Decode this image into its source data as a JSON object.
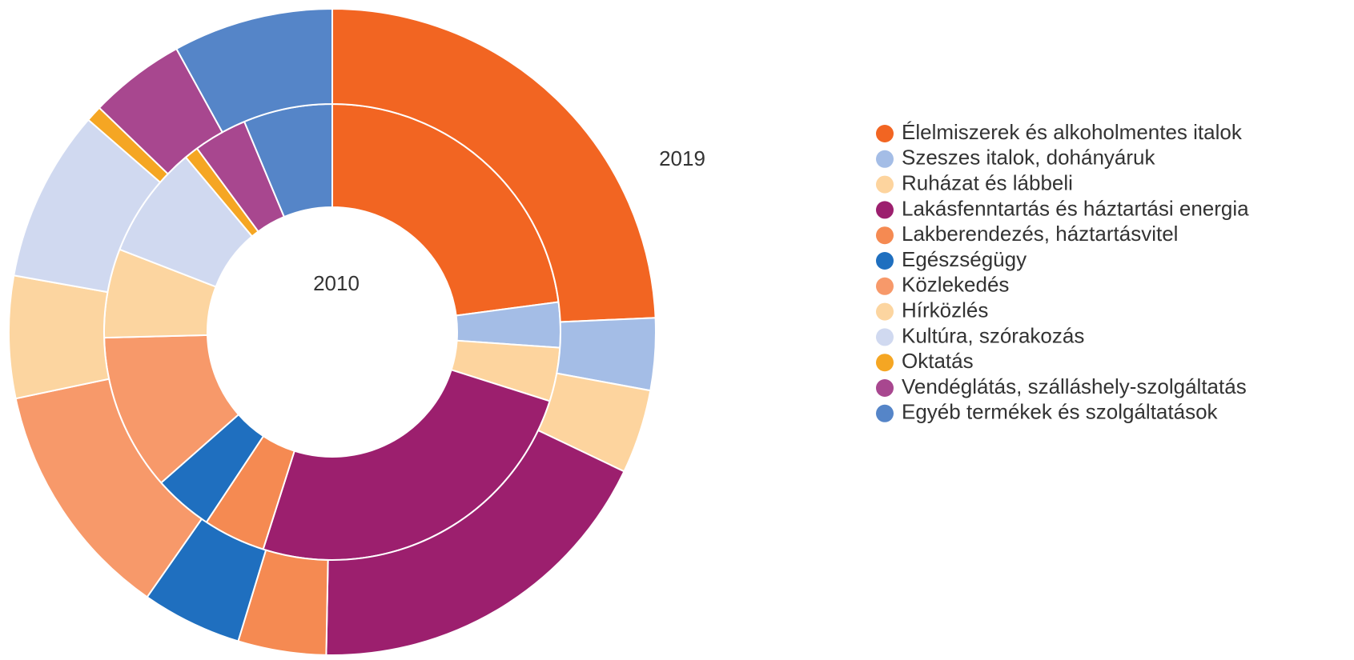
{
  "chart_data": {
    "type": "donut",
    "categories": [
      "Élelmiszerek és alkoholmentes italok",
      "Szeszes italok, dohányáruk",
      "Ruházat és lábbeli",
      "Lakásfenntartás és háztartási energia",
      "Lakberendezés, háztartásvitel",
      "Egészségügy",
      "Közlekedés",
      "Hírközlés",
      "Kultúra, szórakozás",
      "Oktatás",
      "Vendéglátás, szálláshely-szolgáltatás",
      "Egyéb termékek és szolgáltatások"
    ],
    "colors": [
      "#f26522",
      "#a4bde6",
      "#fdd49e",
      "#9c1f6e",
      "#f58a52",
      "#1f6fbf",
      "#f7996a",
      "#fcd5a0",
      "#d0d9f0",
      "#f5a623",
      "#a8478f",
      "#5585c8"
    ],
    "series": [
      {
        "name": "2010",
        "values": [
          22.9,
          3.2,
          3.8,
          25.0,
          4.4,
          4.2,
          11.1,
          6.3,
          8.0,
          1.0,
          3.8,
          6.3
        ]
      },
      {
        "name": "2019",
        "values": [
          24.3,
          3.6,
          4.2,
          18.2,
          4.4,
          5.0,
          12.0,
          6.1,
          8.6,
          0.8,
          4.8,
          8.0
        ]
      }
    ],
    "legend": "right"
  }
}
